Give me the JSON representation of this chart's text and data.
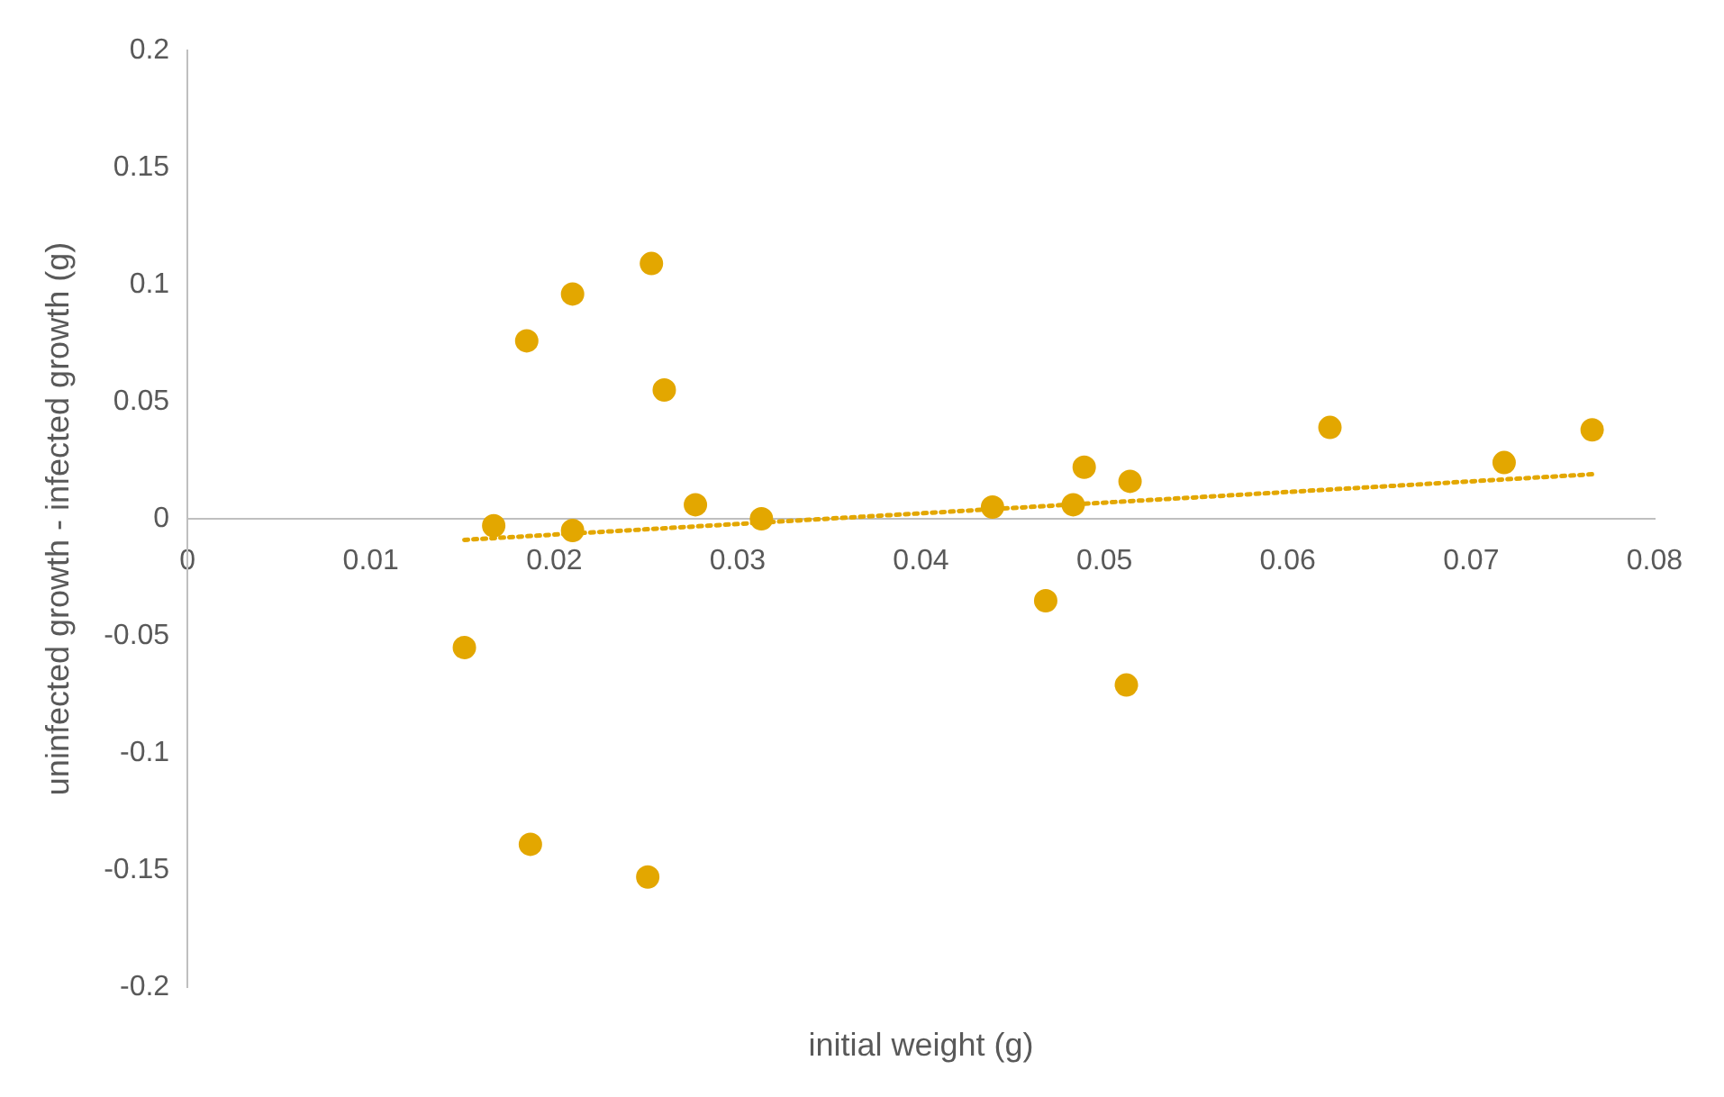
{
  "chart_data": {
    "type": "scatter",
    "xlabel": "initial weight (g)",
    "ylabel": "uninfected growth - infected growth (g)",
    "series": [
      {
        "color": "#e3a700",
        "marker": "circle",
        "x": [
          0.0151,
          0.0167,
          0.0185,
          0.0187,
          0.021,
          0.021,
          0.0253,
          0.0251,
          0.026,
          0.0277,
          0.0313,
          0.0439,
          0.0468,
          0.0483,
          0.0489,
          0.0514,
          0.0512,
          0.0623,
          0.0718,
          0.0766
        ],
        "values": [
          -0.055,
          -0.003,
          0.076,
          -0.139,
          0.096,
          -0.005,
          0.109,
          -0.153,
          0.055,
          0.006,
          0.0,
          0.005,
          -0.035,
          0.006,
          0.022,
          0.016,
          -0.071,
          0.039,
          0.024,
          0.038
        ]
      },
      {
        "type": "line",
        "color": "#e3a700",
        "marker": "none",
        "line_style": "dotted",
        "x": [
          0.0151,
          0.0766
        ],
        "values": [
          -0.009,
          0.019
        ]
      }
    ],
    "xlim": [
      0,
      0.08
    ],
    "xticks": [
      0,
      0.01,
      0.02,
      0.03,
      0.04,
      0.05,
      0.06,
      0.07,
      0.08
    ],
    "ylim": [
      -0.2,
      0.2
    ],
    "yticks": [
      -0.2,
      -0.15,
      -0.1,
      -0.05,
      0,
      0.05,
      0.1,
      0.15,
      0.2
    ],
    "grid": false,
    "legend": false
  }
}
